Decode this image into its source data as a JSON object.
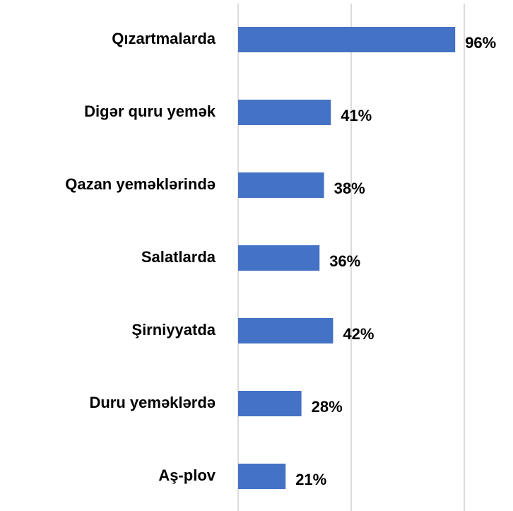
{
  "chart_data": {
    "type": "barh",
    "categories": [
      "Qızartmalarda",
      "Digər quru yemək",
      "Qazan yeməklərində",
      "Salatlarda",
      "Şirniyyatda",
      "Duru yeməklərdə",
      "Aş-plov"
    ],
    "values": [
      96,
      41,
      38,
      36,
      42,
      28,
      21
    ],
    "value_labels": [
      "96%",
      "41%",
      "38%",
      "36%",
      "42%",
      "28%",
      "21%"
    ],
    "color": "#4472c4",
    "xlim": [
      0,
      100
    ],
    "xticks": [
      0,
      50,
      100
    ],
    "grid": true
  }
}
